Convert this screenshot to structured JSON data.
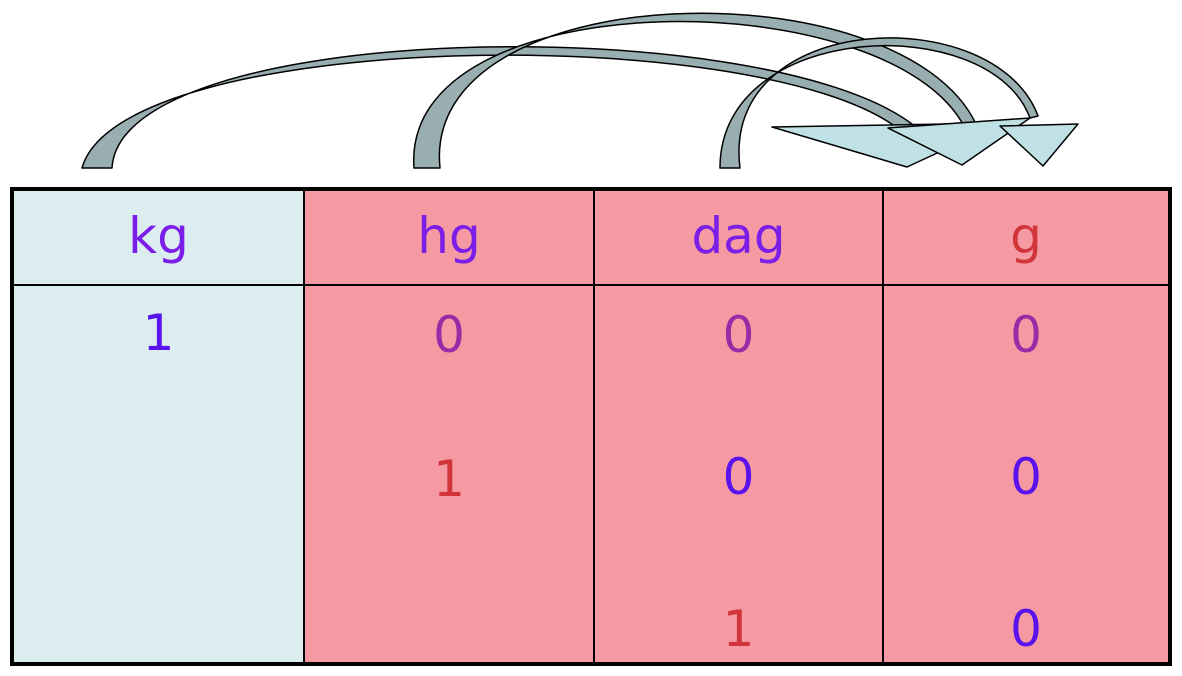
{
  "colors": {
    "light_column": "#dcedf0",
    "pink_column": "#f599a3",
    "purple_text": "#7a1ee8",
    "blue_text": "#5a12ee",
    "magenta_text": "#9a2aa6",
    "red_text": "#d1353a",
    "arrow_fill": "#98aeb0",
    "arrow_head_fill": "#bfe1e5",
    "border": "#000000"
  },
  "table": {
    "columns": [
      {
        "header": "kg",
        "header_color": "#7a1ee8",
        "bg": "#dcedf0",
        "values": [
          {
            "text": "1",
            "color": "#5a12ee"
          },
          {
            "text": "",
            "color": "#5a12ee"
          },
          {
            "text": "",
            "color": "#5a12ee"
          }
        ]
      },
      {
        "header": "hg",
        "header_color": "#7a1ee8",
        "bg": "#f599a3",
        "values": [
          {
            "text": "0",
            "color": "#9a2aa6"
          },
          {
            "text": "1",
            "color": "#d1353a"
          },
          {
            "text": "",
            "color": "#d1353a"
          }
        ]
      },
      {
        "header": "dag",
        "header_color": "#7a1ee8",
        "bg": "#f599a3",
        "values": [
          {
            "text": "0",
            "color": "#9a2aa6"
          },
          {
            "text": "0",
            "color": "#5a12ee"
          },
          {
            "text": "1",
            "color": "#d1353a"
          }
        ]
      },
      {
        "header": "g",
        "header_color": "#d1353a",
        "bg": "#f599a3",
        "values": [
          {
            "text": "0",
            "color": "#9a2aa6"
          },
          {
            "text": "0",
            "color": "#5a12ee"
          },
          {
            "text": "0",
            "color": "#5a12ee"
          }
        ]
      }
    ]
  },
  "arrows": [
    {
      "from": "kg",
      "to": "g",
      "icon": "curved-arrow-icon"
    },
    {
      "from": "hg",
      "to": "g",
      "icon": "curved-arrow-icon"
    },
    {
      "from": "dag",
      "to": "g",
      "icon": "curved-arrow-icon"
    }
  ]
}
